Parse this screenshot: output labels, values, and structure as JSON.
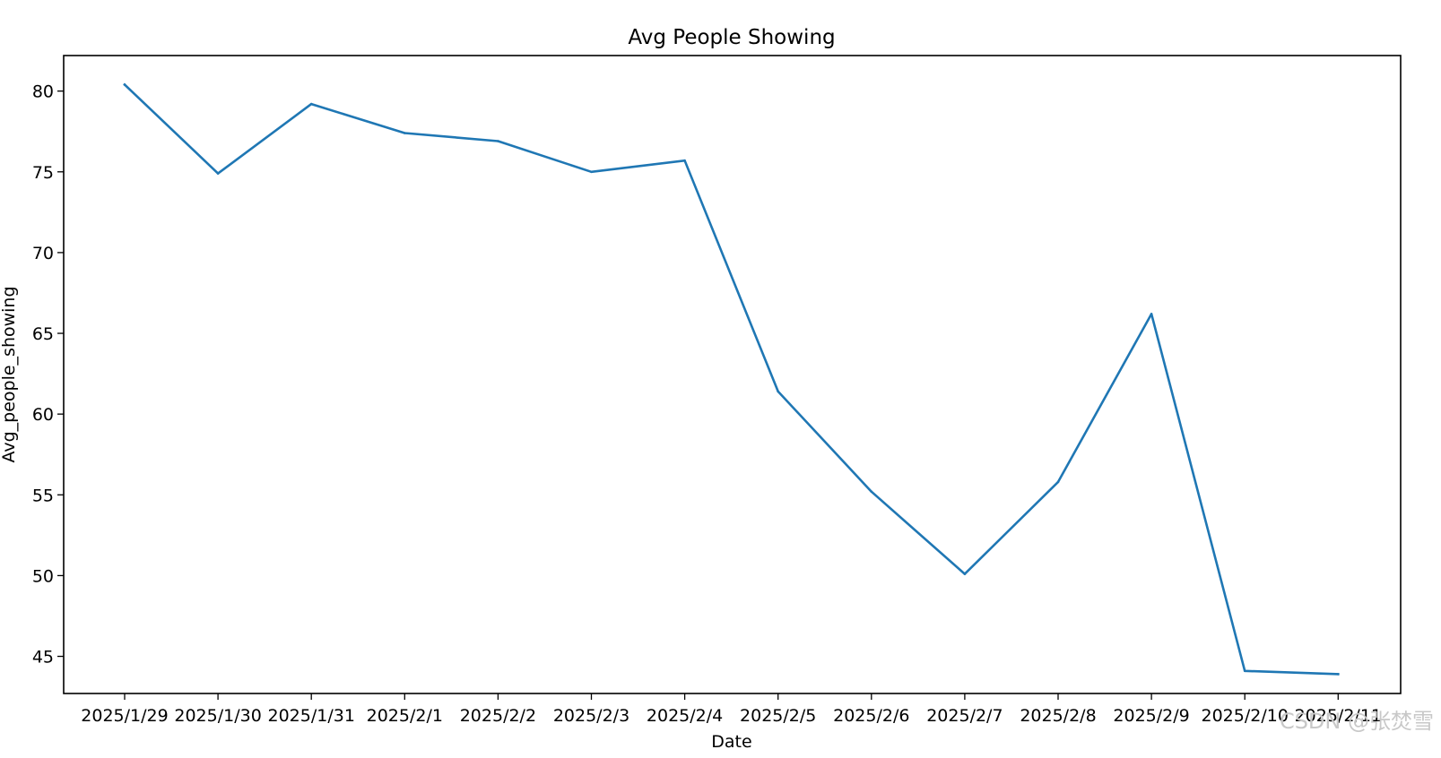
{
  "chart_data": {
    "type": "line",
    "title": "Avg People Showing",
    "xlabel": "Date",
    "ylabel": "Avg_people_showing",
    "categories": [
      "2025/1/29",
      "2025/1/30",
      "2025/1/31",
      "2025/2/1",
      "2025/2/2",
      "2025/2/3",
      "2025/2/4",
      "2025/2/5",
      "2025/2/6",
      "2025/2/7",
      "2025/2/8",
      "2025/2/9",
      "2025/2/10",
      "2025/2/11"
    ],
    "series": [
      {
        "values": [
          80.4,
          74.9,
          79.2,
          77.4,
          76.9,
          75.0,
          75.7,
          61.4,
          55.2,
          50.1,
          55.8,
          66.2,
          44.1,
          43.9
        ],
        "color": "#1f77b4"
      }
    ],
    "ylim": [
      42.7,
      82.2
    ],
    "yticks": [
      45,
      50,
      55,
      60,
      65,
      70,
      75,
      80
    ],
    "grid": false,
    "legend": "none"
  },
  "watermark": "CSDN @张焚雪"
}
